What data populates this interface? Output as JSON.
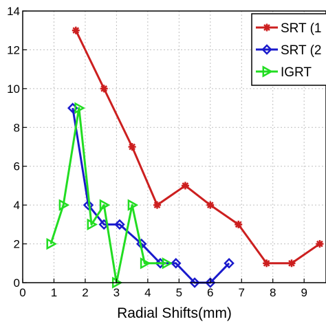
{
  "chart_data": {
    "type": "line",
    "title": "",
    "xlabel": "Radial Shifts(mm)",
    "ylabel": "",
    "xlim": [
      0,
      9.7
    ],
    "ylim": [
      0,
      14
    ],
    "xticks": [
      "0",
      "1",
      "2",
      "3",
      "4",
      "5",
      "6",
      "7",
      "8",
      "9"
    ],
    "yticks": [
      "0",
      "2",
      "4",
      "6",
      "8",
      "10",
      "12",
      "14"
    ],
    "legend_position": "top-right",
    "series": [
      {
        "name": "SRT (1",
        "color": "#cc1f1f",
        "marker": "star",
        "x": [
          1.7,
          2.6,
          3.5,
          4.3,
          5.2,
          6.0,
          6.9,
          7.8,
          8.6,
          9.5
        ],
        "y": [
          13,
          10,
          7,
          4,
          5,
          4,
          3,
          1,
          1,
          2
        ]
      },
      {
        "name": "SRT (2",
        "color": "#1a1acc",
        "marker": "diamond",
        "x": [
          1.6,
          2.1,
          2.6,
          3.1,
          3.8,
          4.4,
          4.9,
          5.5,
          6.0,
          6.6
        ],
        "y": [
          9,
          4,
          3,
          3,
          2,
          1,
          1,
          0,
          0,
          1
        ]
      },
      {
        "name": "IGRT",
        "color": "#22dd22",
        "marker": "triangle-right",
        "x": [
          0.9,
          1.3,
          1.8,
          2.2,
          2.6,
          3.0,
          3.5,
          3.9,
          4.6
        ],
        "y": [
          2,
          4,
          9,
          3,
          4,
          0,
          4,
          1,
          1
        ]
      }
    ]
  }
}
